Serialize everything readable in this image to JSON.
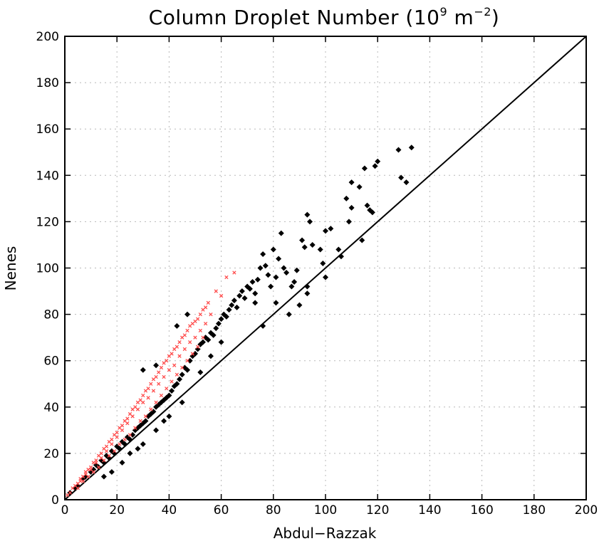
{
  "chart_data": {
    "type": "scatter",
    "title_main": "Column Droplet Number (10",
    "title_sup1": "9",
    "title_unit": " m",
    "title_sup2": "−2",
    "title_close": ")",
    "xlabel": "Abdul−Razzak",
    "ylabel": "Nenes",
    "xlim": [
      0,
      200
    ],
    "ylim": [
      0,
      200
    ],
    "xticks": [
      0,
      20,
      40,
      60,
      80,
      100,
      120,
      140,
      160,
      180,
      200
    ],
    "yticks": [
      0,
      20,
      40,
      60,
      80,
      100,
      120,
      140,
      160,
      180,
      200
    ],
    "grid": true,
    "reference_line": {
      "x": [
        0,
        200
      ],
      "y": [
        0,
        200
      ]
    },
    "series": [
      {
        "color": "#000000",
        "marker": "diamond",
        "points": [
          [
            2,
            3
          ],
          [
            4,
            5
          ],
          [
            5,
            6
          ],
          [
            7,
            9
          ],
          [
            8,
            10
          ],
          [
            10,
            12
          ],
          [
            11,
            13
          ],
          [
            12,
            15
          ],
          [
            13,
            14
          ],
          [
            14,
            17
          ],
          [
            15,
            16
          ],
          [
            16,
            19
          ],
          [
            17,
            18
          ],
          [
            18,
            21
          ],
          [
            19,
            20
          ],
          [
            20,
            23
          ],
          [
            21,
            22
          ],
          [
            22,
            25
          ],
          [
            23,
            24
          ],
          [
            24,
            27
          ],
          [
            25,
            26
          ],
          [
            26,
            28
          ],
          [
            27,
            30
          ],
          [
            28,
            31
          ],
          [
            29,
            32
          ],
          [
            30,
            33
          ],
          [
            31,
            34
          ],
          [
            32,
            36
          ],
          [
            33,
            37
          ],
          [
            34,
            38
          ],
          [
            35,
            40
          ],
          [
            36,
            41
          ],
          [
            37,
            42
          ],
          [
            38,
            43
          ],
          [
            39,
            44
          ],
          [
            40,
            45
          ],
          [
            41,
            47
          ],
          [
            42,
            49
          ],
          [
            43,
            50
          ],
          [
            44,
            52
          ],
          [
            45,
            54
          ],
          [
            46,
            57
          ],
          [
            47,
            56
          ],
          [
            48,
            60
          ],
          [
            49,
            62
          ],
          [
            50,
            63
          ],
          [
            51,
            65
          ],
          [
            52,
            67
          ],
          [
            53,
            68
          ],
          [
            54,
            70
          ],
          [
            55,
            69
          ],
          [
            56,
            72
          ],
          [
            57,
            71
          ],
          [
            58,
            74
          ],
          [
            59,
            76
          ],
          [
            60,
            78
          ],
          [
            61,
            80
          ],
          [
            62,
            79
          ],
          [
            63,
            82
          ],
          [
            64,
            84
          ],
          [
            65,
            86
          ],
          [
            66,
            83
          ],
          [
            67,
            88
          ],
          [
            68,
            90
          ],
          [
            69,
            87
          ],
          [
            70,
            92
          ],
          [
            71,
            91
          ],
          [
            72,
            94
          ],
          [
            73,
            89
          ],
          [
            74,
            95
          ],
          [
            75,
            100
          ],
          [
            76,
            106
          ],
          [
            77,
            101
          ],
          [
            78,
            97
          ],
          [
            79,
            92
          ],
          [
            80,
            108
          ],
          [
            81,
            96
          ],
          [
            82,
            104
          ],
          [
            83,
            115
          ],
          [
            84,
            100
          ],
          [
            85,
            98
          ],
          [
            76,
            75
          ],
          [
            73,
            85
          ],
          [
            30,
            56
          ],
          [
            35,
            58
          ],
          [
            43,
            75
          ],
          [
            47,
            80
          ],
          [
            52,
            55
          ],
          [
            56,
            62
          ],
          [
            60,
            68
          ],
          [
            25,
            20
          ],
          [
            30,
            24
          ],
          [
            35,
            30
          ],
          [
            40,
            36
          ],
          [
            45,
            42
          ],
          [
            15,
            10
          ],
          [
            18,
            12
          ],
          [
            22,
            16
          ],
          [
            28,
            22
          ],
          [
            38,
            34
          ],
          [
            91,
            112
          ],
          [
            92,
            109
          ],
          [
            93,
            123
          ],
          [
            94,
            120
          ],
          [
            95,
            110
          ],
          [
            93,
            89
          ],
          [
            93,
            92
          ],
          [
            98,
            108
          ],
          [
            99,
            102
          ],
          [
            100,
            116
          ],
          [
            100,
            96
          ],
          [
            102,
            117
          ],
          [
            105,
            108
          ],
          [
            106,
            105
          ],
          [
            108,
            130
          ],
          [
            109,
            120
          ],
          [
            110,
            126
          ],
          [
            110,
            137
          ],
          [
            113,
            135
          ],
          [
            114,
            112
          ],
          [
            115,
            143
          ],
          [
            116,
            127
          ],
          [
            117,
            125
          ],
          [
            118,
            124
          ],
          [
            119,
            144
          ],
          [
            120,
            146
          ],
          [
            128,
            151
          ],
          [
            129,
            139
          ],
          [
            131,
            137
          ],
          [
            133,
            152
          ],
          [
            90,
            84
          ],
          [
            87,
            92
          ],
          [
            86,
            80
          ],
          [
            88,
            94
          ],
          [
            81,
            85
          ],
          [
            89,
            99
          ]
        ]
      },
      {
        "color": "#ff4d4d",
        "marker": "cross",
        "points": [
          [
            1,
            2
          ],
          [
            2,
            3
          ],
          [
            3,
            5
          ],
          [
            4,
            6
          ],
          [
            5,
            7
          ],
          [
            6,
            9
          ],
          [
            7,
            10
          ],
          [
            8,
            12
          ],
          [
            9,
            13
          ],
          [
            10,
            14
          ],
          [
            11,
            16
          ],
          [
            12,
            17
          ],
          [
            13,
            19
          ],
          [
            14,
            20
          ],
          [
            15,
            22
          ],
          [
            16,
            23
          ],
          [
            17,
            25
          ],
          [
            18,
            26
          ],
          [
            19,
            28
          ],
          [
            20,
            29
          ],
          [
            21,
            31
          ],
          [
            22,
            32
          ],
          [
            23,
            34
          ],
          [
            24,
            35
          ],
          [
            25,
            37
          ],
          [
            26,
            39
          ],
          [
            27,
            40
          ],
          [
            28,
            42
          ],
          [
            29,
            43
          ],
          [
            30,
            45
          ],
          [
            31,
            47
          ],
          [
            32,
            48
          ],
          [
            33,
            50
          ],
          [
            34,
            52
          ],
          [
            35,
            53
          ],
          [
            36,
            55
          ],
          [
            37,
            57
          ],
          [
            38,
            59
          ],
          [
            39,
            60
          ],
          [
            40,
            62
          ],
          [
            41,
            63
          ],
          [
            42,
            65
          ],
          [
            43,
            66
          ],
          [
            44,
            68
          ],
          [
            45,
            70
          ],
          [
            46,
            71
          ],
          [
            47,
            73
          ],
          [
            48,
            75
          ],
          [
            49,
            76
          ],
          [
            50,
            77
          ],
          [
            51,
            78
          ],
          [
            52,
            80
          ],
          [
            53,
            82
          ],
          [
            54,
            83
          ],
          [
            55,
            85
          ],
          [
            58,
            90
          ],
          [
            62,
            96
          ],
          [
            65,
            98
          ],
          [
            5,
            5
          ],
          [
            7,
            8
          ],
          [
            9,
            10
          ],
          [
            11,
            12
          ],
          [
            13,
            14
          ],
          [
            15,
            17
          ],
          [
            17,
            19
          ],
          [
            19,
            21
          ],
          [
            21,
            24
          ],
          [
            23,
            26
          ],
          [
            25,
            28
          ],
          [
            27,
            31
          ],
          [
            29,
            34
          ],
          [
            31,
            36
          ],
          [
            33,
            39
          ],
          [
            35,
            42
          ],
          [
            37,
            45
          ],
          [
            39,
            48
          ],
          [
            41,
            51
          ],
          [
            43,
            54
          ],
          [
            45,
            57
          ],
          [
            47,
            60
          ],
          [
            49,
            63
          ],
          [
            51,
            66
          ],
          [
            53,
            70
          ],
          [
            6,
            8
          ],
          [
            8,
            11
          ],
          [
            10,
            13
          ],
          [
            12,
            16
          ],
          [
            14,
            18
          ],
          [
            16,
            21
          ],
          [
            18,
            24
          ],
          [
            20,
            27
          ],
          [
            22,
            30
          ],
          [
            24,
            33
          ],
          [
            26,
            36
          ],
          [
            28,
            39
          ],
          [
            30,
            42
          ],
          [
            32,
            44
          ],
          [
            34,
            47
          ],
          [
            36,
            50
          ],
          [
            38,
            53
          ],
          [
            40,
            56
          ],
          [
            42,
            58
          ],
          [
            44,
            62
          ],
          [
            46,
            65
          ],
          [
            48,
            68
          ],
          [
            50,
            70
          ],
          [
            52,
            73
          ],
          [
            54,
            76
          ],
          [
            56,
            80
          ],
          [
            60,
            88
          ]
        ]
      }
    ]
  }
}
